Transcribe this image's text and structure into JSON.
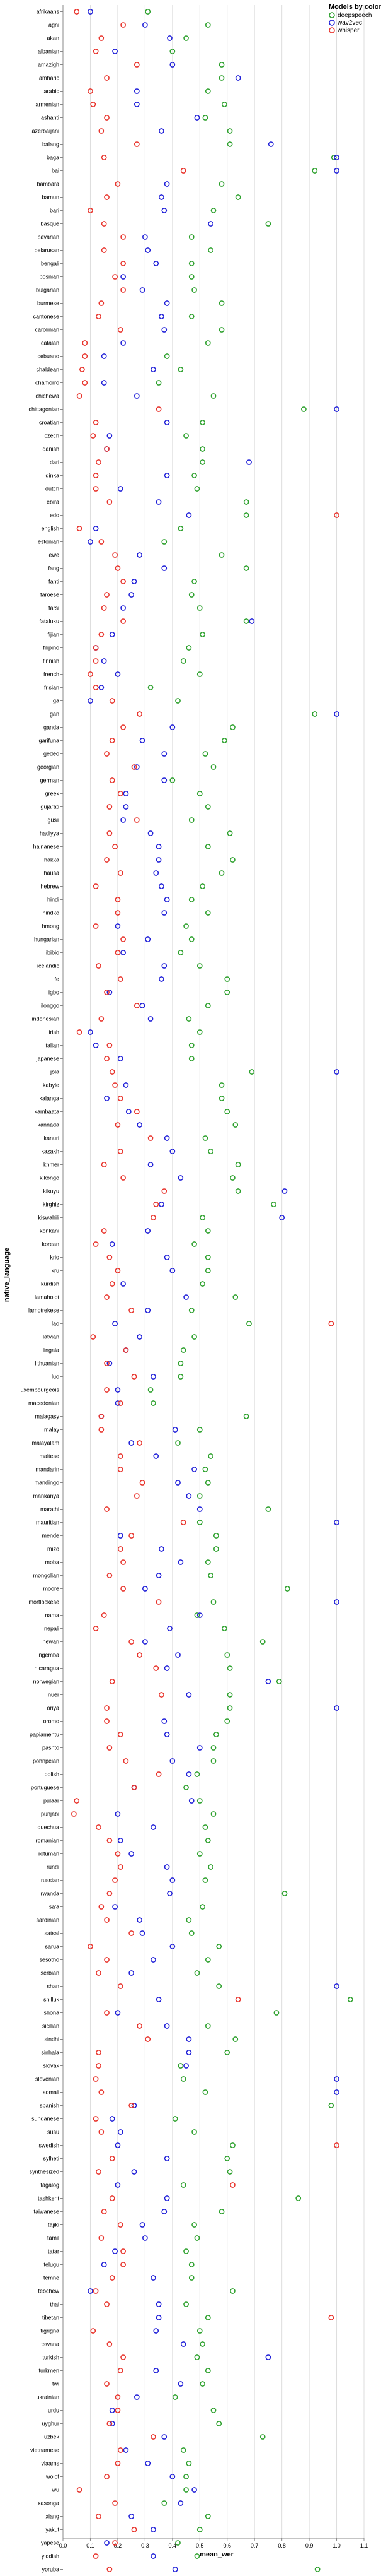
{
  "chart_data": {
    "type": "scatter",
    "xlabel": "mean_wer",
    "ylabel": "native_language",
    "xlim": [
      0.0,
      1.1
    ],
    "x_ticks": [
      "0.0",
      "0.1",
      "0.2",
      "0.3",
      "0.4",
      "0.5",
      "0.6",
      "0.7",
      "0.8",
      "0.9",
      "1.0",
      "1.1"
    ],
    "grid": true,
    "legend": {
      "title": "Models by color",
      "placement": "top-right"
    },
    "series": [
      {
        "name": "deepspeech",
        "color": "#2ca02c"
      },
      {
        "name": "wav2vec",
        "color": "#1f1fd8"
      },
      {
        "name": "whisper",
        "color": "#e8332b"
      }
    ],
    "categories": [
      "afrikaans",
      "agni",
      "akan",
      "albanian",
      "amazigh",
      "amharic",
      "arabic",
      "armenian",
      "ashanti",
      "azerbaijani",
      "balang",
      "baga",
      "bai",
      "bambara",
      "bamun",
      "bari",
      "basque",
      "bavarian",
      "belarusan",
      "bengali",
      "bosnian",
      "bulgarian",
      "burmese",
      "cantonese",
      "carolinian",
      "catalan",
      "cebuano",
      "chaldean",
      "chamorro",
      "chichewa",
      "chittagonian",
      "croatian",
      "czech",
      "danish",
      "dari",
      "dinka",
      "dutch",
      "ebira",
      "edo",
      "english",
      "estonian",
      "ewe",
      "fang",
      "fanti",
      "faroese",
      "farsi",
      "fataluku",
      "fijian",
      "filipino",
      "finnish",
      "french",
      "frisian",
      "ga",
      "gan",
      "ganda",
      "garifuna",
      "gedeo",
      "georgian",
      "german",
      "greek",
      "gujarati",
      "gusii",
      "hadiyya",
      "hainanese",
      "hakka",
      "hausa",
      "hebrew",
      "hindi",
      "hindko",
      "hmong",
      "hungarian",
      "ibibio",
      "icelandic",
      "ife",
      "igbo",
      "ilonggo",
      "indonesian",
      "irish",
      "italian",
      "japanese",
      "jola",
      "kabyle",
      "kalanga",
      "kambaata",
      "kannada",
      "kanuri",
      "kazakh",
      "khmer",
      "kikongo",
      "kikuyu",
      "kirghiz",
      "kiswahili",
      "konkani",
      "korean",
      "krio",
      "kru",
      "kurdish",
      "lamaholot",
      "lamotrekese",
      "lao",
      "latvian",
      "lingala",
      "lithuanian",
      "luo",
      "luxembourgeois",
      "macedonian",
      "malagasy",
      "malay",
      "malayalam",
      "maltese",
      "mandarin",
      "mandingo",
      "mankanya",
      "marathi",
      "mauritian",
      "mende",
      "mizo",
      "moba",
      "mongolian",
      "moore",
      "mortlockese",
      "nama",
      "nepali",
      "newari",
      "ngemba",
      "nicaragua",
      "norwegian",
      "nuer",
      "oriya",
      "oromo",
      "papiamentu",
      "pashto",
      "pohnpeian",
      "polish",
      "portuguese",
      "pulaar",
      "punjabi",
      "quechua",
      "romanian",
      "rotuman",
      "rundi",
      "russian",
      "rwanda",
      "sa'a",
      "sardinian",
      "satsal",
      "sarua",
      "sesotho",
      "serbian",
      "shan",
      "shilluk",
      "shona",
      "sicilian",
      "sindhi",
      "sinhala",
      "slovak",
      "slovenian",
      "somali",
      "spanish",
      "sundanese",
      "susu",
      "swedish",
      "sylheti",
      "synthesized",
      "tagalog",
      "tashkent",
      "taiwanese",
      "tajiki",
      "tamil",
      "tatar",
      "telugu",
      "temne",
      "teochew",
      "thai",
      "tibetan",
      "tigrigna",
      "tswana",
      "turkish",
      "turkmen",
      "twi",
      "ukrainian",
      "urdu",
      "uyghur",
      "uzbek",
      "vietnamese",
      "vlaams",
      "wolof",
      "wu",
      "xasonga",
      "xiang",
      "yakut",
      "yapese",
      "yiddish",
      "yoruba",
      "yupik",
      "zulu"
    ],
    "points": {
      "deepspeech": [
        0.31,
        0.53,
        0.45,
        0.4,
        0.58,
        0.58,
        0.53,
        0.59,
        0.52,
        0.61,
        0.61,
        0.99,
        0.92,
        0.58,
        0.64,
        0.55,
        0.75,
        0.47,
        0.54,
        0.47,
        0.47,
        0.48,
        0.58,
        0.47,
        0.58,
        0.53,
        0.38,
        0.43,
        0.35,
        0.55,
        0.88,
        0.51,
        0.45,
        0.51,
        0.51,
        0.48,
        0.49,
        0.67,
        0.67,
        0.43,
        0.37,
        0.58,
        0.67,
        0.48,
        0.47,
        0.5,
        0.67,
        0.51,
        0.46,
        0.44,
        0.5,
        0.32,
        0.42,
        0.92,
        0.62,
        0.59,
        0.52,
        0.55,
        0.4,
        0.5,
        0.53,
        0.47,
        0.61,
        0.53,
        0.62,
        0.58,
        0.51,
        0.47,
        0.53,
        0.45,
        0.47,
        0.43,
        0.5,
        0.6,
        0.6,
        0.53,
        0.46,
        0.5,
        0.47,
        0.47,
        0.69,
        0.58,
        0.58,
        0.6,
        0.63,
        0.52,
        0.54,
        0.64,
        0.62,
        0.64,
        0.77,
        0.51,
        0.53,
        0.48,
        0.53,
        0.53,
        0.51,
        0.63,
        0.47,
        0.68,
        0.48,
        0.44,
        0.43,
        0.43,
        0.32,
        0.33,
        0.67,
        0.5,
        0.42,
        0.54,
        0.52,
        0.53,
        0.5,
        0.75,
        0.5,
        0.56,
        0.56,
        0.53,
        0.54,
        0.82,
        0.55,
        0.49,
        0.59,
        0.73,
        0.6,
        0.61,
        0.79,
        0.61,
        0.61,
        0.6,
        0.56,
        0.55,
        0.55,
        0.49,
        0.45,
        0.5,
        0.55,
        0.52,
        0.53,
        0.5,
        0.54,
        0.52,
        0.81,
        0.51,
        0.46,
        0.47,
        0.57,
        0.53,
        0.49,
        0.57,
        1.05,
        0.78,
        0.53,
        0.63,
        0.6,
        0.43,
        0.44,
        0.52,
        0.98,
        0.41,
        0.48,
        0.62,
        0.6,
        0.61,
        0.44,
        0.86,
        0.58,
        0.48,
        0.49,
        0.45,
        0.47,
        0.47,
        0.62,
        0.45,
        0.53,
        0.5,
        0.51,
        0.49,
        0.53,
        0.51,
        0.41,
        0.55,
        0.57,
        0.73,
        0.44,
        0.46,
        0.45,
        0.45,
        0.37,
        0.53,
        0.5,
        0.42,
        0.49,
        0.93,
        0.58,
        0.6,
        0.45,
        0.48,
        0.44,
        0.6,
        0.62
      ],
      "wav2vec": [
        0.1,
        0.3,
        0.39,
        0.19,
        0.4,
        0.64,
        0.27,
        0.27,
        0.49,
        0.36,
        0.76,
        1.0,
        1.0,
        0.38,
        0.36,
        0.37,
        0.54,
        0.3,
        0.31,
        0.34,
        0.22,
        0.29,
        0.38,
        0.36,
        0.37,
        0.22,
        0.15,
        0.33,
        0.15,
        0.27,
        1.0,
        0.38,
        0.17,
        0.16,
        0.68,
        0.38,
        0.21,
        0.35,
        0.46,
        0.12,
        0.1,
        0.28,
        0.37,
        0.26,
        0.25,
        0.22,
        0.69,
        0.18,
        0.12,
        0.15,
        0.2,
        0.14,
        0.1,
        1.0,
        0.4,
        0.29,
        0.37,
        0.27,
        0.37,
        0.23,
        0.23,
        0.22,
        0.32,
        0.35,
        0.35,
        0.34,
        0.36,
        0.38,
        0.37,
        0.2,
        0.31,
        0.22,
        0.37,
        0.36,
        0.17,
        0.29,
        0.32,
        0.1,
        0.12,
        0.21,
        1.0,
        0.23,
        0.16,
        0.24,
        0.28,
        0.38,
        0.4,
        0.32,
        0.43,
        0.81,
        0.36,
        0.8,
        0.31,
        0.18,
        0.38,
        0.4,
        0.22,
        0.45,
        0.31,
        0.19,
        0.28,
        0.23,
        0.17,
        0.33,
        0.2,
        0.2,
        0.14,
        0.41,
        0.25,
        0.34,
        0.48,
        0.42,
        0.46,
        0.5,
        1.0,
        0.21,
        0.36,
        0.43,
        0.35,
        0.3,
        1.0,
        0.5,
        0.39,
        0.3,
        0.42,
        0.38,
        0.75,
        0.46,
        1.0,
        0.37,
        0.38,
        0.5,
        0.4,
        0.46,
        0.26,
        0.47,
        0.2,
        0.33,
        0.21,
        0.25,
        0.38,
        0.4,
        0.39,
        0.19,
        0.28,
        0.29,
        0.4,
        0.33,
        0.25,
        1.0,
        0.35,
        0.2,
        0.38,
        0.46,
        0.46,
        0.45,
        1.0,
        1.0,
        0.26,
        0.18,
        0.21,
        0.2,
        0.38,
        0.26,
        0.2,
        0.38,
        0.37,
        0.29,
        0.3,
        0.19,
        0.15,
        0.33,
        0.1,
        0.35,
        0.35,
        0.34,
        0.44,
        0.75,
        0.34,
        0.43,
        0.27,
        0.18,
        0.18,
        0.37,
        0.23,
        0.31,
        0.4,
        0.48,
        0.43,
        0.25,
        0.33,
        0.16,
        0.33,
        0.41,
        0.38,
        0.34,
        0.44,
        0.4,
        0.33,
        0.25,
        0.4
      ],
      "whisper": [
        0.05,
        0.22,
        0.14,
        0.12,
        0.27,
        0.16,
        0.1,
        0.11,
        0.16,
        0.14,
        0.27,
        0.15,
        0.44,
        0.2,
        0.16,
        0.1,
        0.15,
        0.22,
        0.15,
        0.22,
        0.19,
        0.22,
        0.14,
        0.13,
        0.21,
        0.08,
        0.08,
        0.07,
        0.08,
        0.06,
        0.35,
        0.12,
        0.11,
        0.16,
        0.13,
        0.12,
        0.12,
        0.17,
        1.0,
        0.06,
        0.14,
        0.19,
        0.2,
        0.22,
        0.16,
        0.15,
        0.22,
        0.14,
        0.12,
        0.12,
        0.1,
        0.12,
        0.18,
        0.28,
        0.22,
        0.18,
        0.16,
        0.26,
        0.18,
        0.21,
        0.17,
        0.27,
        0.17,
        0.19,
        0.16,
        0.21,
        0.12,
        0.2,
        0.2,
        0.12,
        0.22,
        0.2,
        0.13,
        0.21,
        0.16,
        0.27,
        0.14,
        0.06,
        0.17,
        0.16,
        0.18,
        0.19,
        0.21,
        0.27,
        0.2,
        0.32,
        0.21,
        0.15,
        0.22,
        0.37,
        0.34,
        0.33,
        0.15,
        0.12,
        0.17,
        0.2,
        0.18,
        0.16,
        0.25,
        0.98,
        0.11,
        0.23,
        0.16,
        0.26,
        0.16,
        0.21,
        0.14,
        0.14,
        0.28,
        0.21,
        0.21,
        0.29,
        0.27,
        0.16,
        0.44,
        0.25,
        0.21,
        0.22,
        0.17,
        0.22,
        0.35,
        0.15,
        0.12,
        0.25,
        0.28,
        0.34,
        0.18,
        0.36,
        0.16,
        0.16,
        0.21,
        0.17,
        0.23,
        0.35,
        0.26,
        0.05,
        0.04,
        0.13,
        0.17,
        0.2,
        0.21,
        0.19,
        0.17,
        0.14,
        0.16,
        0.25,
        0.1,
        0.16,
        0.13,
        0.21,
        0.64,
        0.16,
        0.28,
        0.31,
        0.13,
        0.13,
        0.12,
        0.14,
        0.25,
        0.12,
        0.14,
        1.0,
        0.18,
        0.13,
        0.62,
        0.18,
        0.15,
        0.21,
        0.14,
        0.22,
        0.22,
        0.18,
        0.12,
        0.16,
        0.98,
        0.11,
        0.17,
        0.22,
        0.21,
        0.16,
        0.2,
        0.2,
        0.17,
        0.33,
        0.21,
        0.2,
        0.16,
        0.06,
        0.19,
        0.13,
        0.26,
        0.19,
        0.12,
        0.17,
        0.14,
        0.17,
        0.21,
        0.14,
        0.12
      ]
    }
  }
}
